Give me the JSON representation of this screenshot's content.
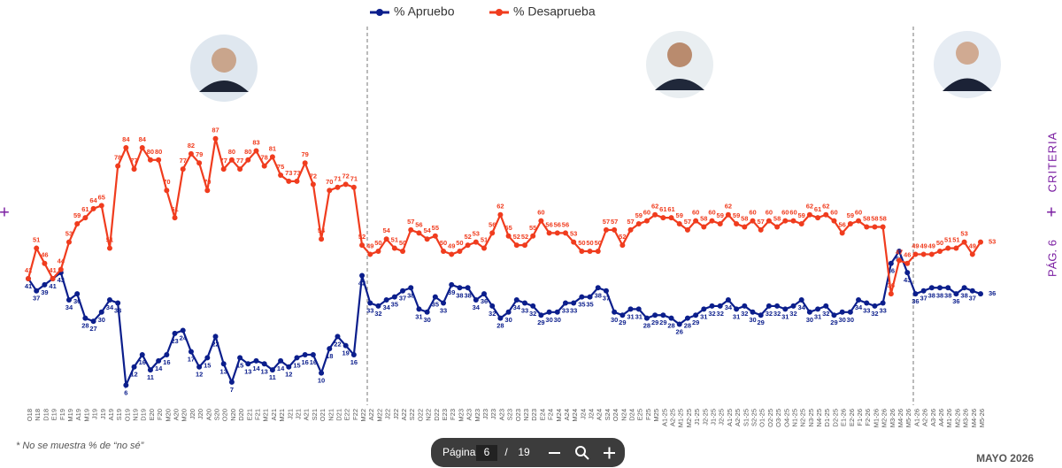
{
  "chart_data": {
    "type": "line",
    "legend_position": "top",
    "categories": [
      "O18",
      "N18",
      "D18",
      "E19",
      "F19",
      "M19",
      "A19",
      "M19",
      "J19",
      "J19",
      "A19",
      "S19",
      "O19",
      "N19",
      "D19",
      "E20",
      "F20",
      "M20",
      "A20",
      "M20",
      "J20",
      "J20",
      "A20",
      "S20",
      "O20",
      "N20",
      "D20",
      "E21",
      "F21",
      "M21",
      "A21",
      "M21",
      "J21",
      "J21",
      "A21",
      "S21",
      "O21",
      "N21",
      "D21",
      "E22",
      "F22",
      "M22",
      "A22",
      "M22",
      "J22",
      "J22",
      "A22",
      "S22",
      "O22",
      "N22",
      "D22",
      "E23",
      "F23",
      "M23",
      "A23",
      "M23",
      "J23",
      "J23",
      "A23",
      "S23",
      "O23",
      "N23",
      "D23",
      "E24",
      "F24",
      "M24",
      "A24",
      "M24",
      "J24",
      "J24",
      "A24",
      "S24",
      "O24",
      "N24",
      "D24",
      "E25",
      "F25",
      "M25",
      "A1-25",
      "A2-25",
      "M1-25",
      "M2-25",
      "J1-25",
      "J2-25",
      "J1-25",
      "J2-25",
      "A1-25",
      "A2-25",
      "S1-25",
      "S2-25",
      "O1-25",
      "O2-25",
      "O3-25",
      "O4-25",
      "N1-25",
      "N2-25",
      "N3-25",
      "N4-25",
      "D1-25",
      "D2-25",
      "E1-26",
      "E2-26",
      "F1-26",
      "F2-26",
      "M1-26",
      "M2-26",
      "M3-26",
      "M4-26",
      "M5-26",
      "A1-26",
      "A2-26",
      "A3-26",
      "A4-26",
      "M1-26",
      "M2-26",
      "M3-26",
      "M4-26",
      "M5-26"
    ],
    "series": [
      {
        "name": "% Apruebo",
        "color": "#0b1e8c",
        "values": [
          41,
          37,
          39,
          41,
          43,
          34,
          36,
          28,
          27,
          30,
          34,
          33,
          6,
          12,
          16,
          11,
          14,
          16,
          23,
          24,
          17,
          12,
          15,
          22,
          13,
          7,
          15,
          13,
          14,
          13,
          11,
          14,
          12,
          15,
          16,
          16,
          10,
          18,
          22,
          19,
          16,
          42,
          33,
          32,
          34,
          35,
          37,
          38,
          31,
          30,
          35,
          33,
          39,
          38,
          38,
          34,
          36,
          32,
          28,
          30,
          34,
          33,
          32,
          29,
          30,
          30,
          33,
          33,
          35,
          35,
          38,
          37,
          30,
          29,
          31,
          31,
          28,
          29,
          29,
          28,
          26,
          28,
          29,
          31,
          32,
          32,
          34,
          31,
          32,
          30,
          29,
          32,
          32,
          31,
          32,
          34,
          30,
          31,
          32,
          29,
          30,
          30,
          34,
          33,
          32,
          33,
          46,
          50,
          43,
          36,
          37,
          38,
          38,
          38,
          36,
          38,
          37,
          36
        ]
      },
      {
        "name": "% Desaprueba",
        "color": "#f03c1e",
        "values": [
          41,
          51,
          46,
          41,
          44,
          53,
          59,
          61,
          64,
          65,
          51,
          78,
          84,
          77,
          84,
          80,
          80,
          70,
          61,
          77,
          82,
          79,
          70,
          87,
          77,
          80,
          77,
          80,
          83,
          78,
          81,
          75,
          73,
          73,
          79,
          72,
          54,
          70,
          71,
          72,
          71,
          52,
          49,
          50,
          54,
          51,
          50,
          57,
          56,
          54,
          55,
          50,
          49,
          50,
          52,
          53,
          51,
          56,
          62,
          55,
          52,
          52,
          55,
          60,
          56,
          56,
          56,
          53,
          50,
          50,
          50,
          57,
          57,
          52,
          57,
          59,
          60,
          62,
          61,
          61,
          59,
          57,
          60,
          58,
          60,
          59,
          62,
          59,
          58,
          60,
          57,
          60,
          58,
          60,
          60,
          59,
          62,
          61,
          62,
          60,
          56,
          59,
          60,
          58,
          58,
          58,
          36,
          47,
          46,
          49,
          49,
          49,
          50,
          51,
          51,
          53,
          49,
          53
        ]
      }
    ],
    "ylim": [
      0,
      100
    ]
  },
  "footnote": "* No se muestra % de “no sé”",
  "pager": {
    "label": "Página",
    "page": "6",
    "separator": "/",
    "total": "19"
  },
  "date": "MAYO 2026",
  "side": {
    "brand": "CRITERIA",
    "page": "PÁG. 6"
  }
}
